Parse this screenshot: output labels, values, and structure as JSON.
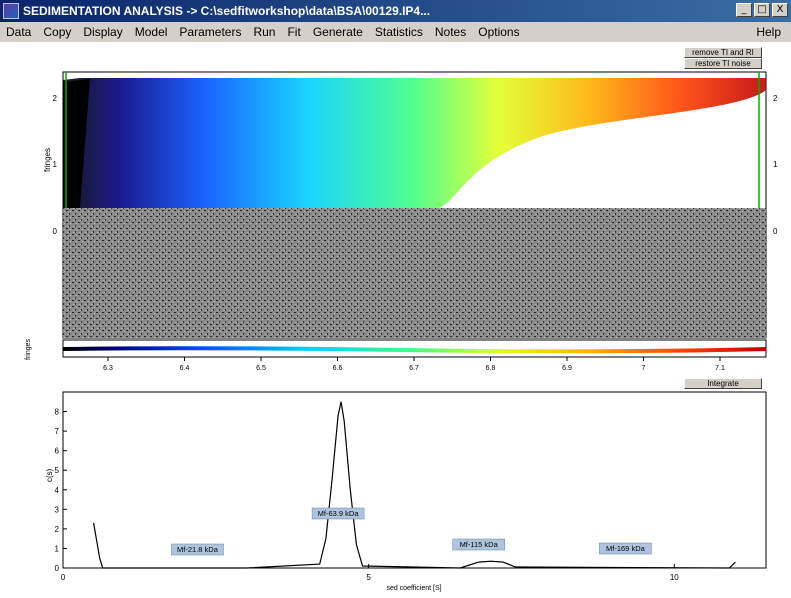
{
  "window": {
    "title": "SEDIMENTATION ANALYSIS -> C:\\sedfitworkshop\\data\\BSA\\00129.IP4...",
    "minimize_label": "_",
    "maximize_label": "□",
    "close_label": "X"
  },
  "menu": {
    "items": [
      "Data",
      "Copy",
      "Display",
      "Model",
      "Parameters",
      "Run",
      "Fit",
      "Generate",
      "Statistics",
      "Notes",
      "Options"
    ],
    "help": "Help"
  },
  "buttons": {
    "remove_ti_ri": "remove TI and RI",
    "restore_ti_noise": "restore TI noise",
    "integrate": "Integrate"
  },
  "top_plot": {
    "ylabel": "fringes",
    "left_ticks": [
      "2",
      "1",
      "0"
    ],
    "right_ticks": [
      "2",
      "1",
      "0"
    ],
    "residual_ylabel": "fringes",
    "x_ticks": [
      "6.3",
      "6.4",
      "6.5",
      "6.6",
      "6.7",
      "6.8",
      "6.9",
      "7",
      "7.1"
    ]
  },
  "chart_data": {
    "type": "line",
    "title": "",
    "xlabel": "sed coefficient [S]",
    "ylabel": "c(s)",
    "xlim": [
      0,
      11.5
    ],
    "ylim": [
      0,
      9
    ],
    "x_ticks": [
      "0",
      "5",
      "10"
    ],
    "y_ticks": [
      "0",
      "1",
      "2",
      "3",
      "4",
      "5",
      "6",
      "7",
      "8"
    ],
    "series": [
      {
        "x": [
          0.5,
          0.6,
          0.65,
          3.0,
          4.2,
          4.3,
          4.4,
          4.5,
          4.55,
          4.6,
          4.7,
          4.8,
          4.9,
          6.5,
          6.8,
          7.0,
          7.2,
          7.4,
          10.9,
          11.0
        ],
        "values": [
          2.3,
          0.5,
          0.0,
          0.0,
          0.2,
          1.5,
          4.5,
          7.8,
          8.5,
          7.5,
          4.0,
          1.2,
          0.1,
          0.0,
          0.3,
          0.35,
          0.3,
          0.05,
          0.0,
          0.3
        ]
      }
    ],
    "annotations": [
      {
        "text": "Mf-21.8 kDa",
        "x": 2.2
      },
      {
        "text": "Mf-63.9 kDa",
        "x": 4.5
      },
      {
        "text": "Mf-115 kDa",
        "x": 6.8
      },
      {
        "text": "Mf-169 kDa",
        "x": 9.2
      }
    ]
  }
}
